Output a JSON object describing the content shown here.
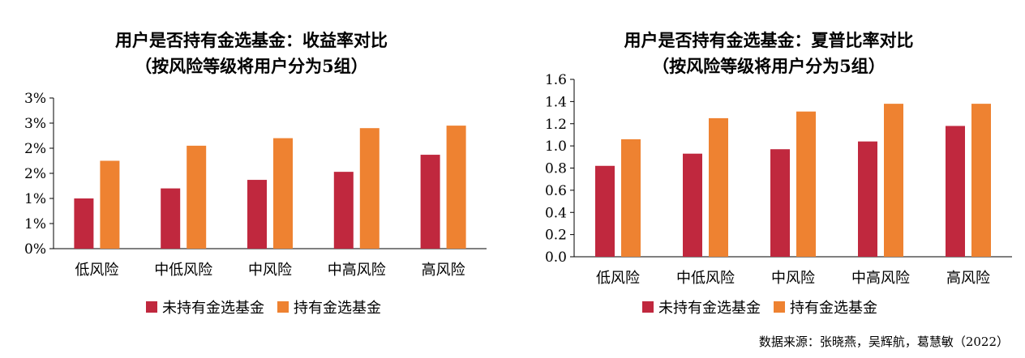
{
  "colors": {
    "series1": "#c0283e",
    "series2": "#ee8231",
    "axis": "#000000"
  },
  "source": "数据来源：张晓燕，吴辉航，葛慧敏（2022）",
  "chart_data": [
    {
      "type": "bar",
      "title": "用户是否持有金选基金：收益率对比",
      "subtitle": "（按风险等级将用户分为5组）",
      "categories": [
        "低风险",
        "中低风险",
        "中风险",
        "中高风险",
        "高风险"
      ],
      "series": [
        {
          "name": "未持有金选基金",
          "values": [
            1.0,
            1.2,
            1.37,
            1.53,
            1.87
          ]
        },
        {
          "name": "持有金选基金",
          "values": [
            1.75,
            2.05,
            2.2,
            2.4,
            2.45
          ]
        }
      ],
      "ylim": [
        0,
        3
      ],
      "yticks": [
        0,
        0.5,
        1,
        1.5,
        2,
        2.5,
        3
      ],
      "ytick_labels": [
        "0%",
        "1%",
        "1%",
        "2%",
        "2%",
        "3%",
        "3%"
      ],
      "legend": [
        "未持有金选基金",
        "持有金选基金"
      ]
    },
    {
      "type": "bar",
      "title": "用户是否持有金选基金：夏普比率对比",
      "subtitle": "（按风险等级将用户分为5组）",
      "categories": [
        "低风险",
        "中低风险",
        "中风险",
        "中高风险",
        "高风险"
      ],
      "series": [
        {
          "name": "未持有金选基金",
          "values": [
            0.82,
            0.93,
            0.97,
            1.04,
            1.18
          ]
        },
        {
          "name": "持有金选基金",
          "values": [
            1.06,
            1.25,
            1.31,
            1.38,
            1.38
          ]
        }
      ],
      "ylim": [
        0,
        1.6
      ],
      "yticks": [
        0,
        0.2,
        0.4,
        0.6,
        0.8,
        1.0,
        1.2,
        1.4,
        1.6
      ],
      "ytick_labels": [
        "0.0",
        "0.2",
        "0.4",
        "0.6",
        "0.8",
        "1.0",
        "1.2",
        "1.4",
        "1.6"
      ],
      "legend": [
        "未持有金选基金",
        "持有金选基金"
      ]
    }
  ]
}
